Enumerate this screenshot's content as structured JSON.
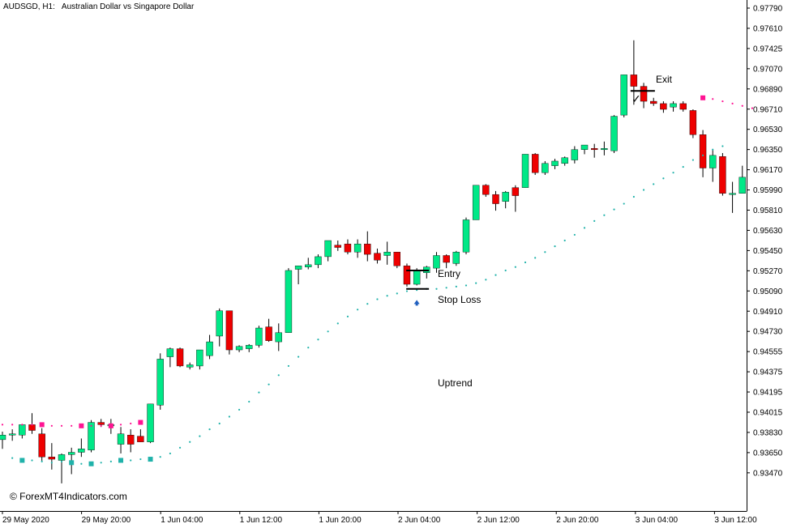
{
  "header": {
    "symbol_tf": "AUDSGD, H1:",
    "description": "Australian Dollar vs Singapore Dollar"
  },
  "annotations": {
    "entry": "Entry",
    "stop_loss": "Stop Loss",
    "exit": "Exit",
    "trend": "Uptrend",
    "exit_mark": "✓"
  },
  "watermark": "© ForexMT4Indicators.com",
  "colors": {
    "bull": "#00e887",
    "bear": "#ee0000",
    "up_dots": "#20b2aa",
    "down_dots": "#ff1493",
    "arrow": "#1f5fbf",
    "axis": "#000000"
  },
  "chart_data": {
    "type": "candlestick",
    "y_ticks": [
      "0.97790",
      "0.97610",
      "0.97425",
      "0.97070",
      "0.96890",
      "0.96710",
      "0.96530",
      "0.96350",
      "0.96170",
      "0.95990",
      "0.95810",
      "0.95630",
      "0.95450",
      "0.95270",
      "0.95090",
      "0.94910",
      "0.94730",
      "0.94555",
      "0.94375",
      "0.94195",
      "0.94015",
      "0.93830",
      "0.93650",
      "0.93470"
    ],
    "x_ticks": [
      "29 May 2020",
      "29 May 20:00",
      "1 Jun 04:00",
      "1 Jun 12:00",
      "1 Jun 20:00",
      "2 Jun 04:00",
      "2 Jun 12:00",
      "2 Jun 20:00",
      "3 Jun 04:00",
      "3 Jun 12:00"
    ],
    "ylim": [
      0.9338,
      0.9782
    ],
    "candles": [
      {
        "o": 0.94,
        "h": 0.9407,
        "l": 0.9392,
        "c": 0.9404
      },
      {
        "o": 0.9404,
        "h": 0.9409,
        "l": 0.9399,
        "c": 0.9405
      },
      {
        "o": 0.9404,
        "h": 0.9413,
        "l": 0.9401,
        "c": 0.9413
      },
      {
        "o": 0.9413,
        "h": 0.9423,
        "l": 0.9405,
        "c": 0.9408
      },
      {
        "o": 0.9405,
        "h": 0.941,
        "l": 0.9381,
        "c": 0.9385
      },
      {
        "o": 0.9385,
        "h": 0.9397,
        "l": 0.9374,
        "c": 0.9383
      },
      {
        "o": 0.9382,
        "h": 0.9388,
        "l": 0.9362,
        "c": 0.9387
      },
      {
        "o": 0.9387,
        "h": 0.9393,
        "l": 0.937,
        "c": 0.9389
      },
      {
        "o": 0.9389,
        "h": 0.9401,
        "l": 0.9385,
        "c": 0.9392
      },
      {
        "o": 0.9391,
        "h": 0.9417,
        "l": 0.9389,
        "c": 0.9415
      },
      {
        "o": 0.9415,
        "h": 0.9418,
        "l": 0.9411,
        "c": 0.9413
      },
      {
        "o": 0.9413,
        "h": 0.9418,
        "l": 0.9405,
        "c": 0.9413
      },
      {
        "o": 0.9396,
        "h": 0.9411,
        "l": 0.9388,
        "c": 0.9405
      },
      {
        "o": 0.9404,
        "h": 0.9409,
        "l": 0.9389,
        "c": 0.9396
      },
      {
        "o": 0.9403,
        "h": 0.9409,
        "l": 0.9398,
        "c": 0.9398
      },
      {
        "o": 0.9398,
        "h": 0.9431,
        "l": 0.9397,
        "c": 0.9431
      },
      {
        "o": 0.943,
        "h": 0.9475,
        "l": 0.9426,
        "c": 0.947
      },
      {
        "o": 0.9472,
        "h": 0.948,
        "l": 0.9463,
        "c": 0.9479
      },
      {
        "o": 0.9479,
        "h": 0.948,
        "l": 0.9463,
        "c": 0.9464
      },
      {
        "o": 0.9463,
        "h": 0.9467,
        "l": 0.9461,
        "c": 0.9465
      },
      {
        "o": 0.9464,
        "h": 0.9478,
        "l": 0.9461,
        "c": 0.9478
      },
      {
        "o": 0.9473,
        "h": 0.9491,
        "l": 0.947,
        "c": 0.9485
      },
      {
        "o": 0.949,
        "h": 0.9514,
        "l": 0.9481,
        "c": 0.9512
      },
      {
        "o": 0.9512,
        "h": 0.9512,
        "l": 0.9474,
        "c": 0.9478
      },
      {
        "o": 0.9478,
        "h": 0.9482,
        "l": 0.9476,
        "c": 0.9481
      },
      {
        "o": 0.9479,
        "h": 0.9483,
        "l": 0.9476,
        "c": 0.9482
      },
      {
        "o": 0.9482,
        "h": 0.9499,
        "l": 0.948,
        "c": 0.9497
      },
      {
        "o": 0.9498,
        "h": 0.9505,
        "l": 0.9485,
        "c": 0.9486
      },
      {
        "o": 0.9485,
        "h": 0.9501,
        "l": 0.9477,
        "c": 0.9493
      },
      {
        "o": 0.9493,
        "h": 0.9549,
        "l": 0.9493,
        "c": 0.9547
      },
      {
        "o": 0.9548,
        "h": 0.9551,
        "l": 0.9535,
        "c": 0.9551
      },
      {
        "o": 0.955,
        "h": 0.9558,
        "l": 0.9548,
        "c": 0.9552
      },
      {
        "o": 0.9552,
        "h": 0.9561,
        "l": 0.9549,
        "c": 0.9559
      },
      {
        "o": 0.9559,
        "h": 0.9573,
        "l": 0.9555,
        "c": 0.9573
      },
      {
        "o": 0.9569,
        "h": 0.9573,
        "l": 0.9564,
        "c": 0.9567
      },
      {
        "o": 0.957,
        "h": 0.9574,
        "l": 0.9561,
        "c": 0.9563
      },
      {
        "o": 0.9563,
        "h": 0.9574,
        "l": 0.9558,
        "c": 0.957
      },
      {
        "o": 0.957,
        "h": 0.9581,
        "l": 0.9555,
        "c": 0.9561
      },
      {
        "o": 0.9562,
        "h": 0.9566,
        "l": 0.9553,
        "c": 0.9556
      },
      {
        "o": 0.956,
        "h": 0.9572,
        "l": 0.9552,
        "c": 0.9563
      },
      {
        "o": 0.9563,
        "h": 0.9563,
        "l": 0.9549,
        "c": 0.9551
      },
      {
        "o": 0.9551,
        "h": 0.9553,
        "l": 0.9533,
        "c": 0.9535
      },
      {
        "o": 0.9535,
        "h": 0.9549,
        "l": 0.9534,
        "c": 0.9547
      },
      {
        "o": 0.9545,
        "h": 0.9551,
        "l": 0.954,
        "c": 0.955
      },
      {
        "o": 0.9549,
        "h": 0.9563,
        "l": 0.9545,
        "c": 0.956
      },
      {
        "o": 0.956,
        "h": 0.9561,
        "l": 0.9549,
        "c": 0.9554
      },
      {
        "o": 0.9553,
        "h": 0.9564,
        "l": 0.9551,
        "c": 0.9563
      },
      {
        "o": 0.9563,
        "h": 0.9593,
        "l": 0.9561,
        "c": 0.9591
      },
      {
        "o": 0.9591,
        "h": 0.9621,
        "l": 0.9591,
        "c": 0.9621
      },
      {
        "o": 0.9621,
        "h": 0.9622,
        "l": 0.9611,
        "c": 0.9613
      },
      {
        "o": 0.9613,
        "h": 0.9616,
        "l": 0.9599,
        "c": 0.9605
      },
      {
        "o": 0.9607,
        "h": 0.9616,
        "l": 0.9601,
        "c": 0.9615
      },
      {
        "o": 0.9619,
        "h": 0.9621,
        "l": 0.9598,
        "c": 0.9612
      },
      {
        "o": 0.9619,
        "h": 0.9648,
        "l": 0.9619,
        "c": 0.9648
      },
      {
        "o": 0.9648,
        "h": 0.9649,
        "l": 0.963,
        "c": 0.9632
      },
      {
        "o": 0.9632,
        "h": 0.9642,
        "l": 0.963,
        "c": 0.964
      },
      {
        "o": 0.9638,
        "h": 0.9644,
        "l": 0.9635,
        "c": 0.9642
      },
      {
        "o": 0.964,
        "h": 0.9646,
        "l": 0.9638,
        "c": 0.9645
      },
      {
        "o": 0.9643,
        "h": 0.9655,
        "l": 0.964,
        "c": 0.9652
      },
      {
        "o": 0.9652,
        "h": 0.9656,
        "l": 0.9648,
        "c": 0.9656
      },
      {
        "o": 0.9653,
        "h": 0.9657,
        "l": 0.9645,
        "c": 0.9652
      },
      {
        "o": 0.9652,
        "h": 0.9659,
        "l": 0.9647,
        "c": 0.9653
      },
      {
        "o": 0.9651,
        "h": 0.9682,
        "l": 0.9649,
        "c": 0.9681
      },
      {
        "o": 0.9682,
        "h": 0.9717,
        "l": 0.968,
        "c": 0.9717
      },
      {
        "o": 0.9717,
        "h": 0.9747,
        "l": 0.9691,
        "c": 0.9707
      },
      {
        "o": 0.9707,
        "h": 0.971,
        "l": 0.9688,
        "c": 0.9694
      },
      {
        "o": 0.9694,
        "h": 0.9697,
        "l": 0.969,
        "c": 0.9692
      },
      {
        "o": 0.9692,
        "h": 0.9694,
        "l": 0.9684,
        "c": 0.9687
      },
      {
        "o": 0.9689,
        "h": 0.9694,
        "l": 0.9685,
        "c": 0.9692
      },
      {
        "o": 0.9692,
        "h": 0.9694,
        "l": 0.9685,
        "c": 0.9687
      },
      {
        "o": 0.9686,
        "h": 0.9687,
        "l": 0.9662,
        "c": 0.9665
      },
      {
        "o": 0.9665,
        "h": 0.9669,
        "l": 0.9628,
        "c": 0.9636
      },
      {
        "o": 0.9636,
        "h": 0.9652,
        "l": 0.9624,
        "c": 0.9647
      },
      {
        "o": 0.9646,
        "h": 0.9649,
        "l": 0.9612,
        "c": 0.9614
      },
      {
        "o": 0.9613,
        "h": 0.9624,
        "l": 0.9597,
        "c": 0.9614
      },
      {
        "o": 0.9614,
        "h": 0.9638,
        "l": 0.9614,
        "c": 0.9628
      }
    ],
    "indicator": {
      "name": "",
      "up_start": 1,
      "up_end": 73,
      "up_values": [
        0.9384,
        0.9382,
        0.9382,
        0.9381,
        0.938,
        0.9381,
        0.938,
        0.9379,
        0.9379,
        0.938,
        0.9381,
        0.9382,
        0.9382,
        0.9383,
        0.9383,
        0.9385,
        0.9388,
        0.9393,
        0.9398,
        0.9403,
        0.9409,
        0.9414,
        0.942,
        0.9426,
        0.9433,
        0.9441,
        0.9448,
        0.9456,
        0.9464,
        0.9472,
        0.948,
        0.9487,
        0.9494,
        0.9501,
        0.9507,
        0.9513,
        0.9518,
        0.9522,
        0.9525,
        0.9527,
        0.9529,
        0.953,
        0.9531,
        0.9531,
        0.9532,
        0.9533,
        0.9534,
        0.9536,
        0.9539,
        0.9543,
        0.9547,
        0.955,
        0.9554,
        0.9558,
        0.9563,
        0.9568,
        0.9573,
        0.9578,
        0.9584,
        0.959,
        0.9595,
        0.96,
        0.9605,
        0.9611,
        0.9617,
        0.9622,
        0.9627,
        0.9632,
        0.9637,
        0.9643,
        0.9647,
        0.9652,
        0.9655
      ],
      "down_start": 0,
      "down_values": [
        0.9413,
        0.9413,
        0.9413,
        0.9413,
        0.9413,
        0.9412,
        0.9412,
        0.9412,
        0.9412,
        0.9412,
        0.9412,
        0.9412,
        0.9413,
        0.9414,
        0.9415
      ],
      "down2_start": 71,
      "down2_values": [
        0.9697,
        0.9696,
        0.9694,
        0.9692,
        0.969,
        0.9688
      ],
      "up_squares": [
        2,
        7,
        9,
        12,
        15
      ],
      "down_squares": [
        4,
        8,
        11,
        14,
        71
      ]
    },
    "trade": {
      "entry_candle": 42,
      "entry_price": 0.9547,
      "stop_price": 0.9531,
      "arrow_candle": 42,
      "arrow_price": 0.952,
      "exit_candle": 64,
      "exit_price": 0.9703
    }
  }
}
